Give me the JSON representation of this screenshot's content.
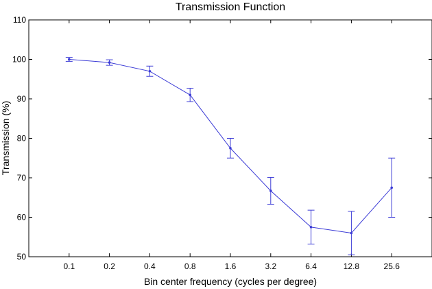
{
  "chart_data": {
    "type": "line",
    "title": "Transmission Function",
    "xlabel": "Bin center frequency (cycles per degree)",
    "ylabel": "Transmission (%)",
    "categories": [
      "0.1",
      "0.2",
      "0.4",
      "0.8",
      "1.6",
      "3.2",
      "6.4",
      "12.8",
      "25.6"
    ],
    "x": [
      0.1,
      0.2,
      0.4,
      0.8,
      1.6,
      3.2,
      6.4,
      12.8,
      25.6
    ],
    "x_scale": "log",
    "xlim": [
      0.05,
      51.2
    ],
    "ylim": [
      50,
      110
    ],
    "yticks": [
      50,
      60,
      70,
      80,
      90,
      100,
      110
    ],
    "grid": false,
    "series": [
      {
        "values": [
          100.0,
          99.2,
          97.0,
          91.0,
          77.5,
          66.7,
          57.5,
          56.0,
          67.5
        ],
        "err_low": [
          0.5,
          0.7,
          1.3,
          1.7,
          2.5,
          3.4,
          4.3,
          5.5,
          7.5
        ],
        "err_high": [
          0.5,
          0.7,
          1.3,
          1.7,
          2.5,
          3.4,
          4.3,
          5.5,
          7.5
        ],
        "color": "#3b3bd6"
      }
    ]
  }
}
